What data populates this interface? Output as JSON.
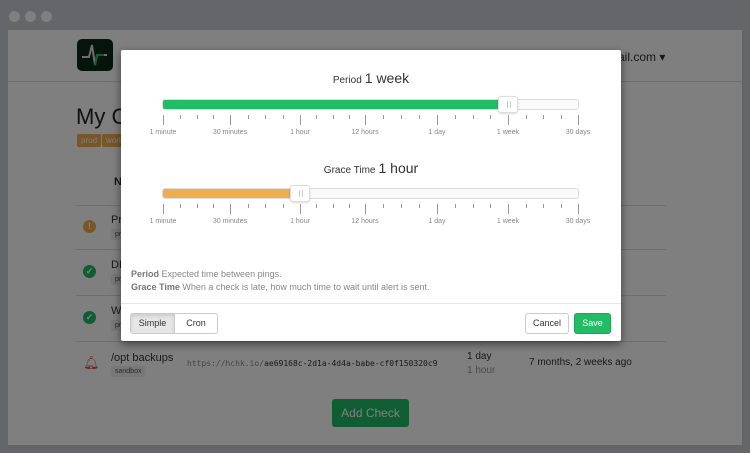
{
  "background": {
    "email": "ail.com ▾",
    "title": "My C",
    "tags": [
      "prod",
      "work"
    ],
    "table_header": "N",
    "rows": [
      {
        "status": "late",
        "name": "Pr",
        "tag": "pr",
        "color": "#f0ad4e"
      },
      {
        "status": "up",
        "name": "DE",
        "tag": "pr",
        "color": "#22bb66"
      },
      {
        "status": "up",
        "name": "We",
        "tag": "pr",
        "color": "#22bb66"
      },
      {
        "status": "down",
        "name": "/opt backups",
        "tag": "sandbox",
        "color": "#d9534f"
      }
    ],
    "last_row": {
      "url_prefix": "https://hchk.io/",
      "url_code": "ae69168c-2d1a-4d4a-babe-cf0f150320c9",
      "period": "1 day",
      "grace": "1 hour",
      "last_ping": "7 months, 2 weeks ago"
    },
    "add_check": "Add Check"
  },
  "modal": {
    "period": {
      "label": "Period",
      "value": "1 week",
      "position_index": 5,
      "color": "#22bb66"
    },
    "grace": {
      "label": "Grace Time",
      "value": "1 hour",
      "position_index": 2,
      "color": "#f0ad4e"
    },
    "scale": [
      "1 minute",
      "30 minutes",
      "1 hour",
      "12 hours",
      "1 day",
      "1 week",
      "30 days"
    ],
    "help": {
      "period_term": "Period",
      "period_text": " Expected time between pings.",
      "grace_term": "Grace Time",
      "grace_text": " When a check is late, how much time to wait until alert is sent."
    },
    "buttons": {
      "simple": "Simple",
      "cron": "Cron",
      "cancel": "Cancel",
      "save": "Save"
    },
    "active_mode": "simple"
  }
}
